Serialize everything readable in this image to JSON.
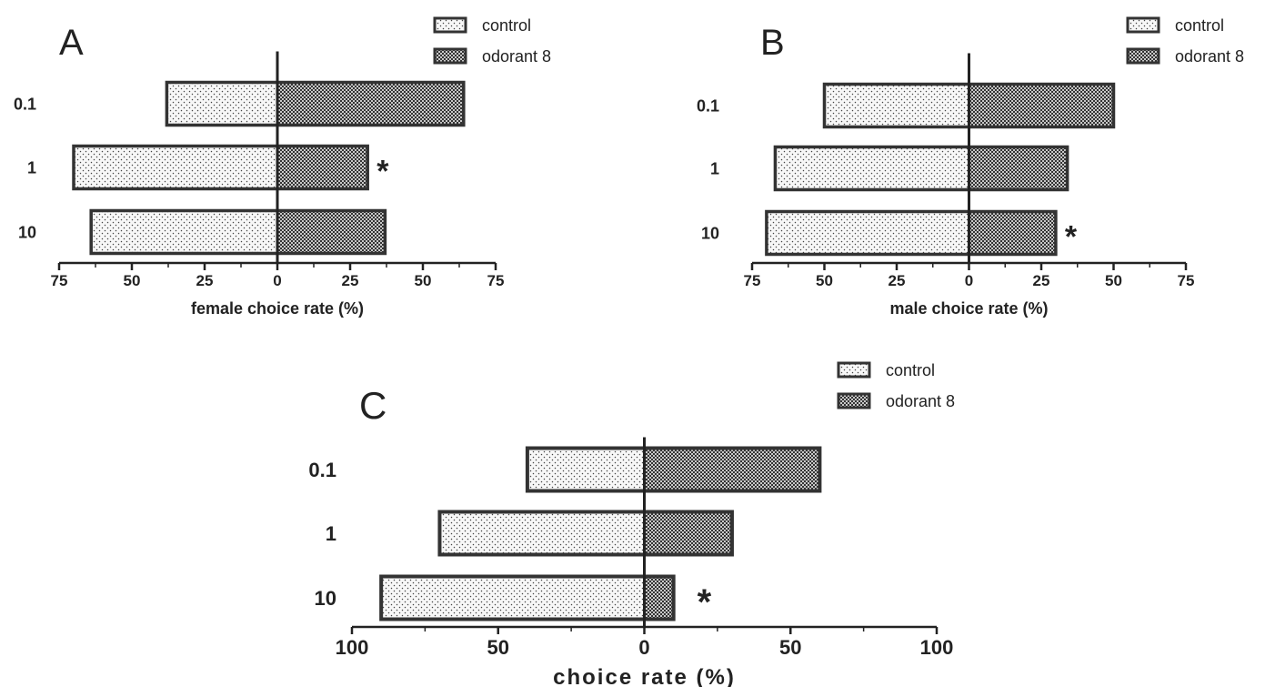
{
  "chart_data": [
    {
      "type": "bar",
      "orientation": "horizontal-diverging",
      "panel": "A",
      "xlabel": "female choice rate (%)",
      "categories": [
        "0.1",
        "1",
        "10"
      ],
      "series": [
        {
          "name": "control",
          "values": [
            38,
            70,
            64
          ],
          "pattern": "dots"
        },
        {
          "name": "odorant 8",
          "values": [
            64,
            31,
            37
          ],
          "pattern": "checker"
        }
      ],
      "xticks": [
        "75",
        "50",
        "25",
        "0",
        "25",
        "50",
        "75"
      ],
      "xlim": [
        -75,
        75
      ],
      "annotations": [
        {
          "category": "1",
          "text": "*"
        }
      ],
      "legend": "top-right"
    },
    {
      "type": "bar",
      "orientation": "horizontal-diverging",
      "panel": "B",
      "xlabel": "male choice rate (%)",
      "categories": [
        "0.1",
        "1",
        "10"
      ],
      "series": [
        {
          "name": "control",
          "values": [
            50,
            67,
            70
          ],
          "pattern": "dots"
        },
        {
          "name": "odorant 8",
          "values": [
            50,
            34,
            30
          ],
          "pattern": "checker"
        }
      ],
      "xticks": [
        "75",
        "50",
        "25",
        "0",
        "25",
        "50",
        "75"
      ],
      "xlim": [
        -75,
        75
      ],
      "annotations": [
        {
          "category": "10",
          "text": "*"
        }
      ],
      "legend": "top-right"
    },
    {
      "type": "bar",
      "orientation": "horizontal-diverging",
      "panel": "C",
      "xlabel": "choice rate (%)",
      "categories": [
        "0.1",
        "1",
        "10"
      ],
      "series": [
        {
          "name": "control",
          "values": [
            40,
            70,
            90
          ],
          "pattern": "dots"
        },
        {
          "name": "odorant 8",
          "values": [
            60,
            30,
            10
          ],
          "pattern": "checker"
        }
      ],
      "xticks": [
        "100",
        "50",
        "0",
        "50",
        "100"
      ],
      "xlim": [
        -100,
        100
      ],
      "annotations": [
        {
          "category": "10",
          "text": "*"
        }
      ],
      "legend": "top-right"
    }
  ]
}
